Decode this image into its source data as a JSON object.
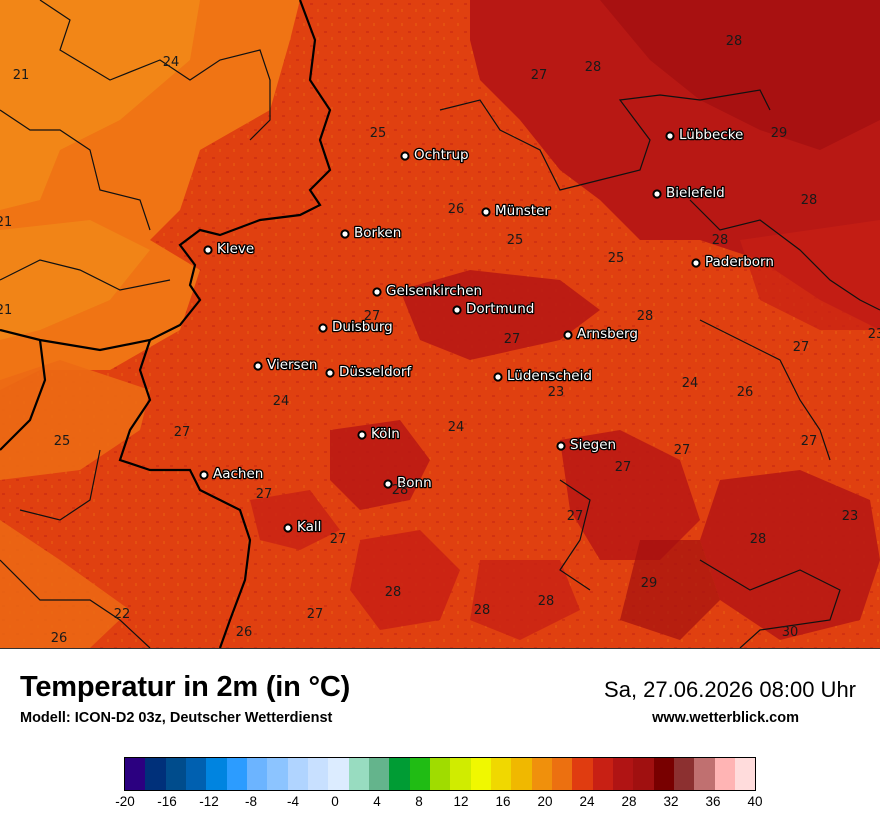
{
  "header": {
    "title": "Temperatur in 2m (in °C)",
    "model": "Modell: ICON-D2 03z, Deutscher Wetterdienst",
    "datetime": "Sa, 27.06.2026 08:00 Uhr",
    "website": "www.wetterblick.com"
  },
  "map": {
    "cities": [
      {
        "name": "Ochtrup"
      },
      {
        "name": "Lübbecke"
      },
      {
        "name": "Bielefeld"
      },
      {
        "name": "Münster"
      },
      {
        "name": "Borken"
      },
      {
        "name": "Kleve"
      },
      {
        "name": "Paderborn"
      },
      {
        "name": "Gelsenkirchen"
      },
      {
        "name": "Dortmund"
      },
      {
        "name": "Duisburg"
      },
      {
        "name": "Arnsberg"
      },
      {
        "name": "Viersen"
      },
      {
        "name": "Düsseldorf"
      },
      {
        "name": "Lüdenscheid"
      },
      {
        "name": "Köln"
      },
      {
        "name": "Siegen"
      },
      {
        "name": "Aachen"
      },
      {
        "name": "Bonn"
      },
      {
        "name": "Kall"
      }
    ],
    "isoline_values": [
      "28",
      "24",
      "27",
      "28",
      "21",
      "25",
      "29",
      "26",
      "21",
      "25",
      "28",
      "28",
      "25",
      "21",
      "27",
      "28",
      "27",
      "27",
      "24",
      "26",
      "24",
      "23",
      "25",
      "27",
      "24",
      "27",
      "27",
      "28",
      "23",
      "28",
      "27",
      "27",
      "27",
      "27",
      "22",
      "26",
      "26",
      "27",
      "28",
      "28",
      "29",
      "30",
      "28",
      "23"
    ]
  },
  "legend": {
    "ticks": [
      "-20",
      "-16",
      "-12",
      "-8",
      "-4",
      "0",
      "4",
      "8",
      "12",
      "16",
      "20",
      "24",
      "28",
      "32",
      "36",
      "40"
    ],
    "colors": [
      "#2b0080",
      "#00307a",
      "#004c8c",
      "#0060b0",
      "#0084e0",
      "#2c9cff",
      "#6cb4ff",
      "#8cc4ff",
      "#b0d4ff",
      "#c8e0ff",
      "#dcecff",
      "#98dcc0",
      "#64b48c",
      "#009c34",
      "#20bc14",
      "#a0dc00",
      "#d0ec00",
      "#f0f800",
      "#f0d800",
      "#f0b800",
      "#f0900c",
      "#ec7010",
      "#e03c10",
      "#c82014",
      "#b01414",
      "#a01010",
      "#780000",
      "#8c3030",
      "#c07070",
      "#ffb4b4",
      "#ffdcdc"
    ]
  }
}
